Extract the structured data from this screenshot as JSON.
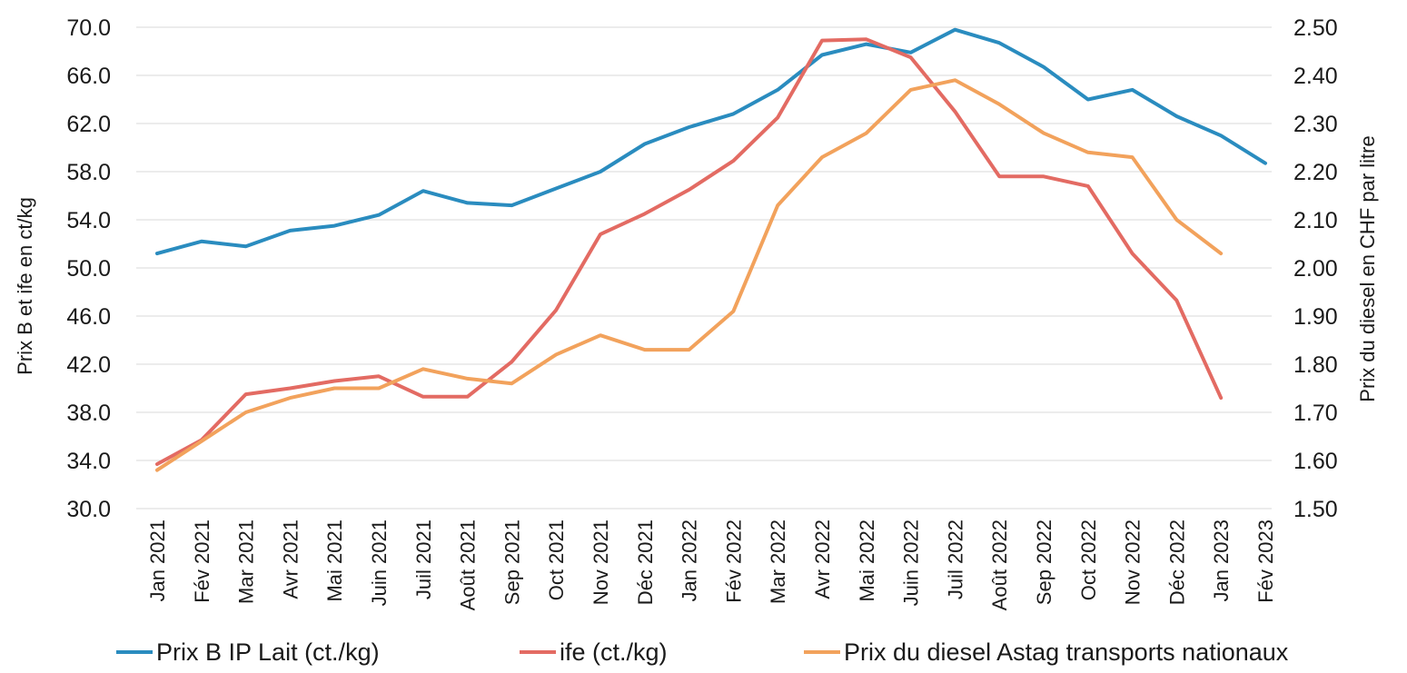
{
  "chart_data": {
    "type": "line",
    "categories": [
      "Jan 2021",
      "Fév 2021",
      "Mar 2021",
      "Avr 2021",
      "Mai 2021",
      "Juin 2021",
      "Juil  2021",
      "Août 2021",
      "Sep 2021",
      "Oct 2021",
      "Nov 2021",
      "Déc 2021",
      "Jan 2022",
      "Fév 2022",
      "Mar 2022",
      "Avr 2022",
      "Mai 2022",
      "Juin 2022",
      "Juil  2022",
      "Août 2022",
      "Sep 2022",
      "Oct 2022",
      "Nov 2022",
      "Déc 2022",
      "Jan 2023",
      "Fév 2023"
    ],
    "ylabel": "Prix B et ife en ct/kg",
    "y2label": "Prix du diesel en CHF par litre",
    "ylim": [
      30,
      70
    ],
    "y2lim": [
      1.5,
      2.5
    ],
    "yticks": [
      "30.0",
      "34.0",
      "38.0",
      "42.0",
      "46.0",
      "50.0",
      "54.0",
      "58.0",
      "62.0",
      "66.0",
      "70.0"
    ],
    "y2ticks": [
      "1.50",
      "1.60",
      "1.70",
      "1.80",
      "1.90",
      "2.00",
      "2.10",
      "2.20",
      "2.30",
      "2.40",
      "2.50"
    ],
    "grid": true,
    "legend_position": "bottom",
    "series": [
      {
        "name": "Prix B IP Lait (ct./kg)",
        "axis": "left",
        "color": "#2a8cbf",
        "values": [
          51.2,
          52.2,
          51.8,
          53.1,
          53.5,
          54.4,
          56.4,
          55.4,
          55.2,
          56.6,
          58.0,
          60.3,
          61.7,
          62.8,
          64.8,
          67.7,
          68.6,
          67.9,
          69.8,
          68.7,
          66.7,
          64.0,
          64.8,
          62.6,
          61.0,
          58.7
        ]
      },
      {
        "name": "ife (ct./kg)",
        "axis": "left",
        "color": "#e36b63",
        "values": [
          33.7,
          35.7,
          39.5,
          40.0,
          40.6,
          41.0,
          39.3,
          39.3,
          42.2,
          46.5,
          52.8,
          54.5,
          56.5,
          58.9,
          62.5,
          68.9,
          69.0,
          67.5,
          63.0,
          57.6,
          57.6,
          56.8,
          51.2,
          47.3,
          39.2,
          null
        ]
      },
      {
        "name": "Prix du diesel Astag transports nationaux",
        "axis": "right",
        "color": "#f2a25c",
        "values": [
          1.58,
          1.64,
          1.7,
          1.73,
          1.75,
          1.75,
          1.79,
          1.77,
          1.76,
          1.82,
          1.86,
          1.83,
          1.83,
          1.91,
          2.13,
          2.23,
          2.28,
          2.37,
          2.39,
          2.34,
          2.28,
          2.24,
          2.23,
          2.1,
          2.03,
          null
        ]
      }
    ]
  }
}
